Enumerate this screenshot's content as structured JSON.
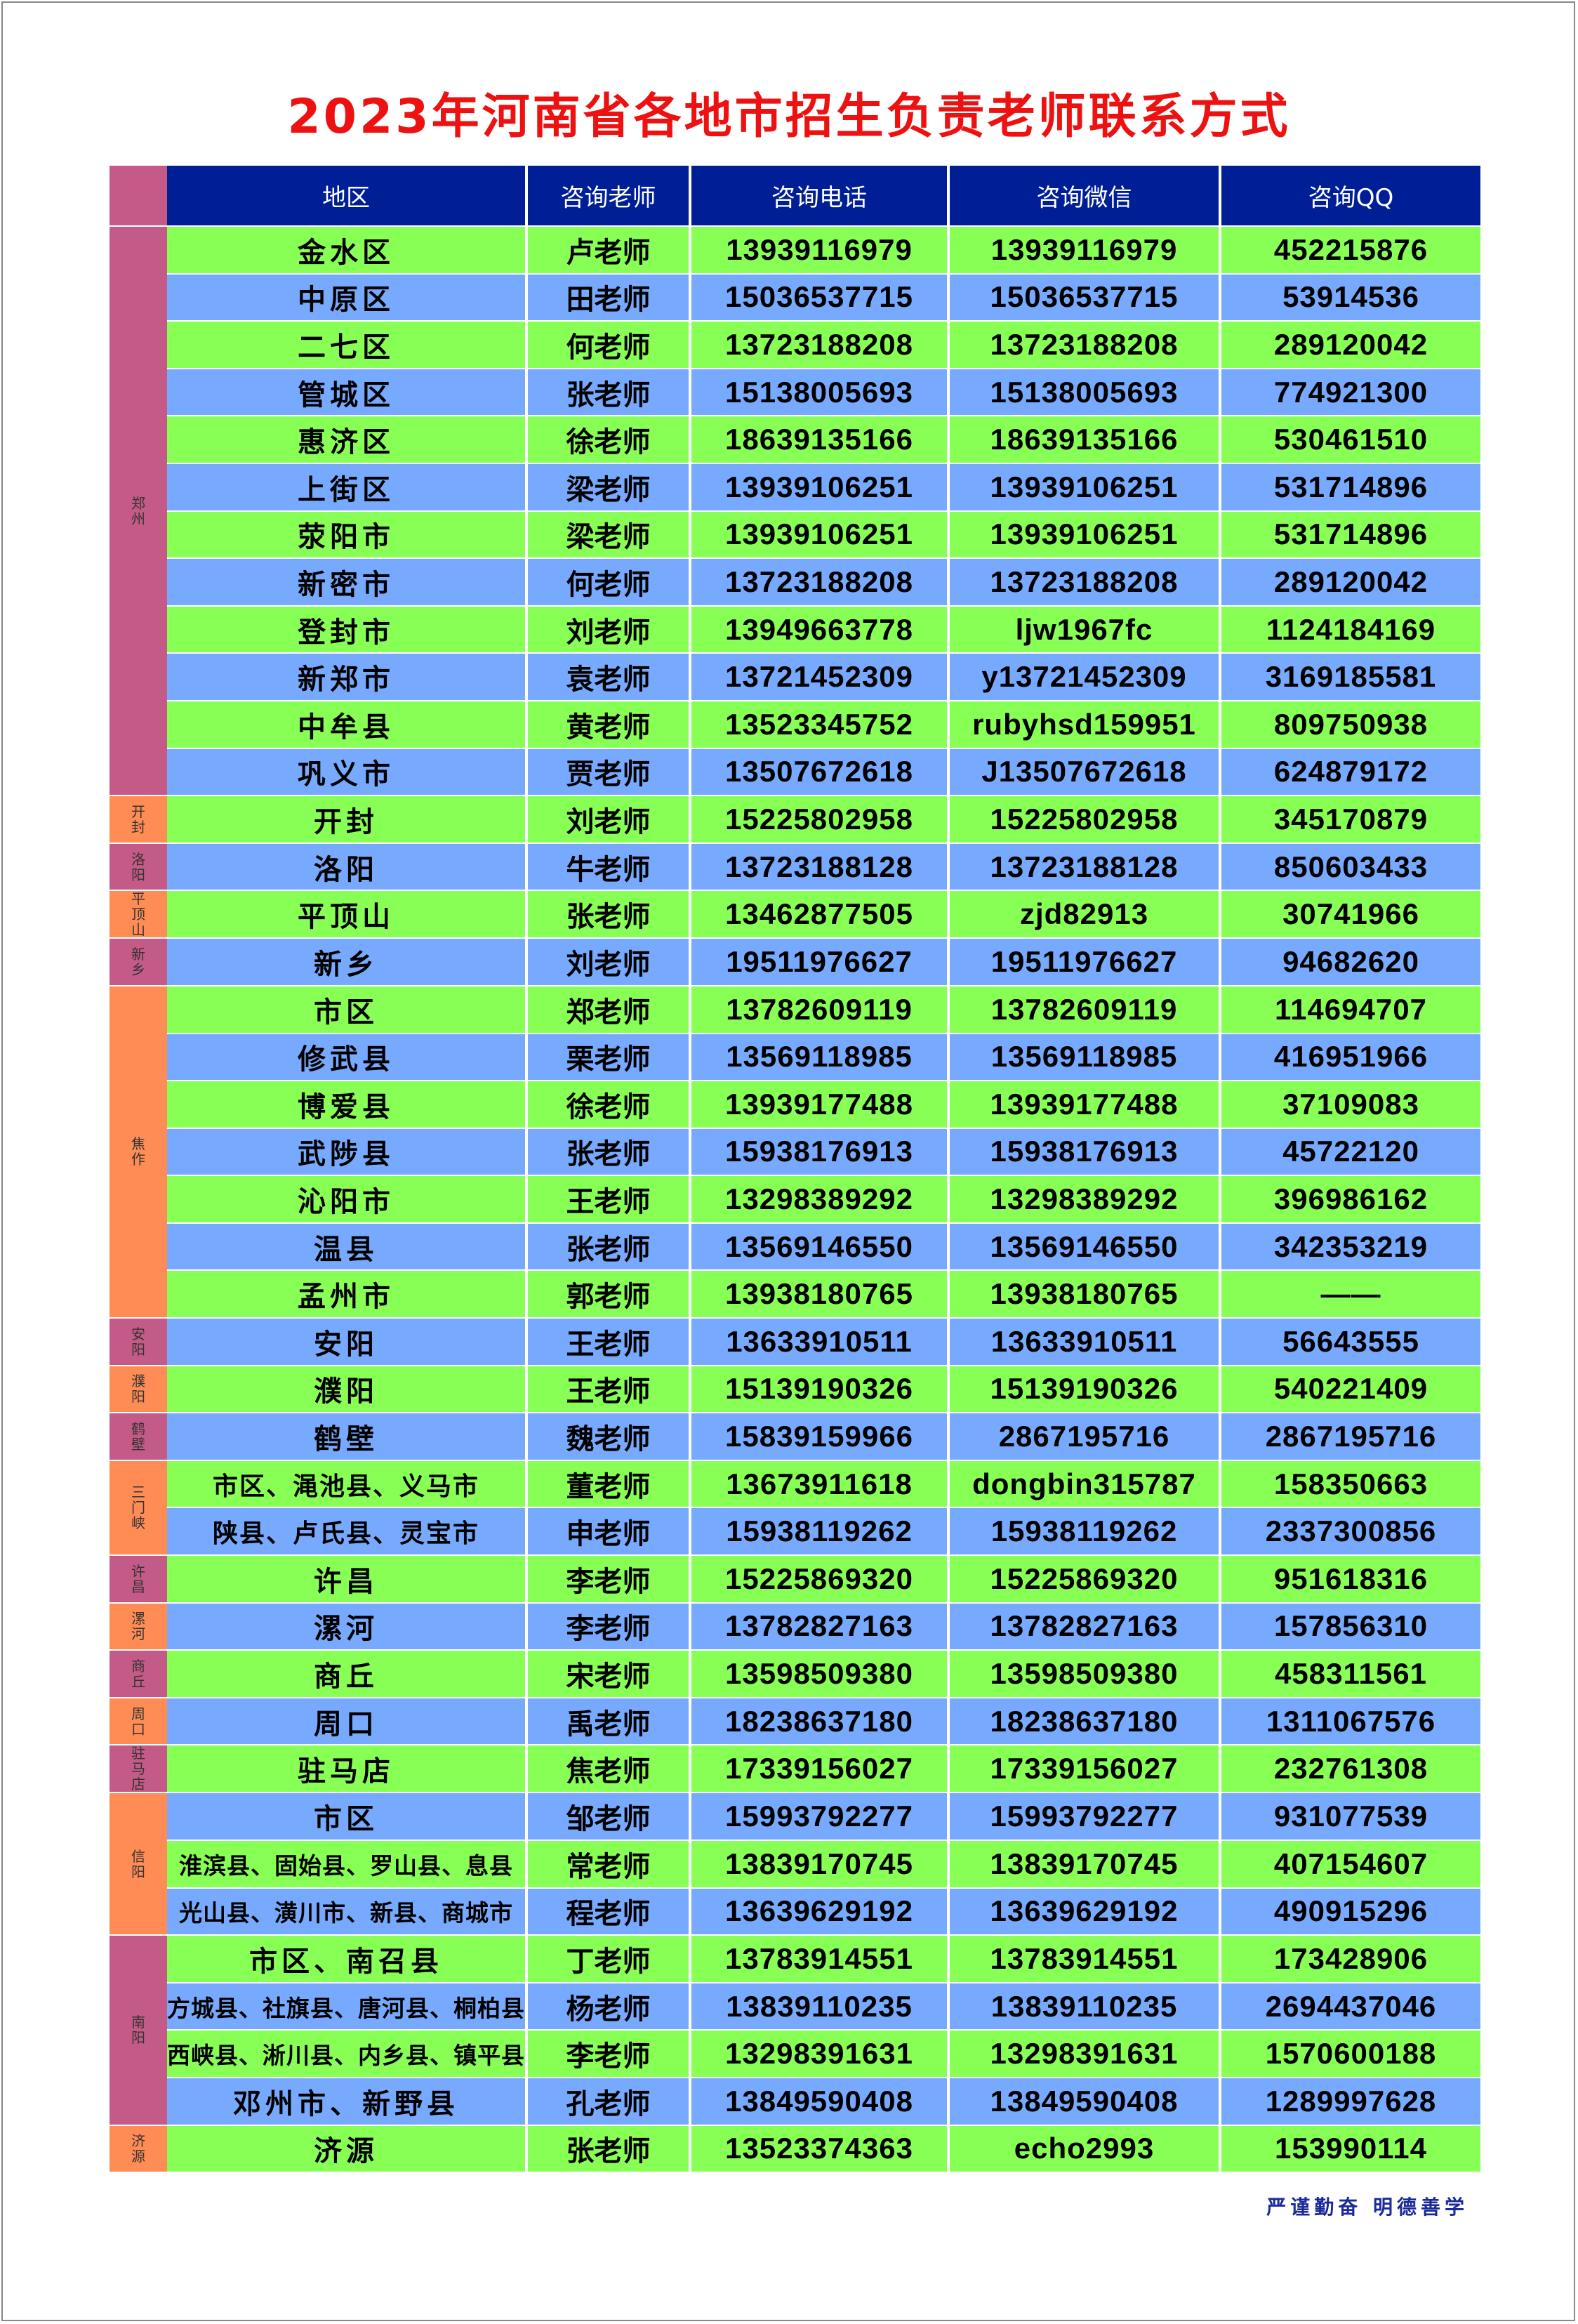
{
  "title": "2023年河南省各地市招生负责老师联系方式",
  "headers": {
    "area": "地区",
    "teacher": "咨询老师",
    "phone": "咨询电话",
    "wechat": "咨询微信",
    "qq": "咨询QQ"
  },
  "footer": "严谨勤奋 明德善学",
  "colors": {
    "title": "#ee1111",
    "header_bg": "#001e96",
    "row_green": "#88ff55",
    "row_blue": "#77aaff",
    "group_pink": "#c45a87",
    "group_orange": "#ff8c55",
    "footer": "#1a2a9a"
  },
  "groups": [
    {
      "name": "郑州",
      "rows": [
        {
          "area": "金水区",
          "teacher": "卢老师",
          "phone": "13939116979",
          "wechat": "13939116979",
          "qq": "452215876"
        },
        {
          "area": "中原区",
          "teacher": "田老师",
          "phone": "15036537715",
          "wechat": "15036537715",
          "qq": "53914536"
        },
        {
          "area": "二七区",
          "teacher": "何老师",
          "phone": "13723188208",
          "wechat": "13723188208",
          "qq": "289120042"
        },
        {
          "area": "管城区",
          "teacher": "张老师",
          "phone": "15138005693",
          "wechat": "15138005693",
          "qq": "774921300"
        },
        {
          "area": "惠济区",
          "teacher": "徐老师",
          "phone": "18639135166",
          "wechat": "18639135166",
          "qq": "530461510"
        },
        {
          "area": "上街区",
          "teacher": "梁老师",
          "phone": "13939106251",
          "wechat": "13939106251",
          "qq": "531714896"
        },
        {
          "area": "荥阳市",
          "teacher": "梁老师",
          "phone": "13939106251",
          "wechat": "13939106251",
          "qq": "531714896"
        },
        {
          "area": "新密市",
          "teacher": "何老师",
          "phone": "13723188208",
          "wechat": "13723188208",
          "qq": "289120042"
        },
        {
          "area": "登封市",
          "teacher": "刘老师",
          "phone": "13949663778",
          "wechat": "ljw1967fc",
          "qq": "1124184169"
        },
        {
          "area": "新郑市",
          "teacher": "袁老师",
          "phone": "13721452309",
          "wechat": "y13721452309",
          "qq": "3169185581"
        },
        {
          "area": "中牟县",
          "teacher": "黄老师",
          "phone": "13523345752",
          "wechat": "rubyhsd159951",
          "qq": "809750938"
        },
        {
          "area": "巩义市",
          "teacher": "贾老师",
          "phone": "13507672618",
          "wechat": "J13507672618",
          "qq": "624879172"
        }
      ]
    },
    {
      "name": "开封",
      "rows": [
        {
          "area": "开封",
          "teacher": "刘老师",
          "phone": "15225802958",
          "wechat": "15225802958",
          "qq": "345170879"
        }
      ]
    },
    {
      "name": "洛阳",
      "rows": [
        {
          "area": "洛阳",
          "teacher": "牛老师",
          "phone": "13723188128",
          "wechat": "13723188128",
          "qq": "850603433"
        }
      ]
    },
    {
      "name": "平顶山",
      "rows": [
        {
          "area": "平顶山",
          "teacher": "张老师",
          "phone": "13462877505",
          "wechat": "zjd82913",
          "qq": "30741966"
        }
      ]
    },
    {
      "name": "新乡",
      "rows": [
        {
          "area": "新乡",
          "teacher": "刘老师",
          "phone": "19511976627",
          "wechat": "19511976627",
          "qq": "94682620"
        }
      ]
    },
    {
      "name": "焦作",
      "rows": [
        {
          "area": "市区",
          "teacher": "郑老师",
          "phone": "13782609119",
          "wechat": "13782609119",
          "qq": "114694707"
        },
        {
          "area": "修武县",
          "teacher": "栗老师",
          "phone": "13569118985",
          "wechat": "13569118985",
          "qq": "416951966"
        },
        {
          "area": "博爱县",
          "teacher": "徐老师",
          "phone": "13939177488",
          "wechat": "13939177488",
          "qq": "37109083"
        },
        {
          "area": "武陟县",
          "teacher": "张老师",
          "phone": "15938176913",
          "wechat": "15938176913",
          "qq": "45722120"
        },
        {
          "area": "沁阳市",
          "teacher": "王老师",
          "phone": "13298389292",
          "wechat": "13298389292",
          "qq": "396986162"
        },
        {
          "area": "温县",
          "teacher": "张老师",
          "phone": "13569146550",
          "wechat": "13569146550",
          "qq": "342353219"
        },
        {
          "area": "孟州市",
          "teacher": "郭老师",
          "phone": "13938180765",
          "wechat": "13938180765",
          "qq": "——"
        }
      ]
    },
    {
      "name": "安阳",
      "rows": [
        {
          "area": "安阳",
          "teacher": "王老师",
          "phone": "13633910511",
          "wechat": "13633910511",
          "qq": "56643555"
        }
      ]
    },
    {
      "name": "濮阳",
      "rows": [
        {
          "area": "濮阳",
          "teacher": "王老师",
          "phone": "15139190326",
          "wechat": "15139190326",
          "qq": "540221409"
        }
      ]
    },
    {
      "name": "鹤壁",
      "rows": [
        {
          "area": "鹤壁",
          "teacher": "魏老师",
          "phone": "15839159966",
          "wechat": "2867195716",
          "qq": "2867195716"
        }
      ]
    },
    {
      "name": "三门峡",
      "rows": [
        {
          "area": "市区、渑池县、义马市",
          "teacher": "董老师",
          "phone": "13673911618",
          "wechat": "dongbin315787",
          "qq": "158350663"
        },
        {
          "area": "陕县、卢氏县、灵宝市",
          "teacher": "申老师",
          "phone": "15938119262",
          "wechat": "15938119262",
          "qq": "2337300856"
        }
      ]
    },
    {
      "name": "许昌",
      "rows": [
        {
          "area": "许昌",
          "teacher": "李老师",
          "phone": "15225869320",
          "wechat": "15225869320",
          "qq": "951618316"
        }
      ]
    },
    {
      "name": "漯河",
      "rows": [
        {
          "area": "漯河",
          "teacher": "李老师",
          "phone": "13782827163",
          "wechat": "13782827163",
          "qq": "157856310"
        }
      ]
    },
    {
      "name": "商丘",
      "rows": [
        {
          "area": "商丘",
          "teacher": "宋老师",
          "phone": "13598509380",
          "wechat": "13598509380",
          "qq": "458311561"
        }
      ]
    },
    {
      "name": "周口",
      "rows": [
        {
          "area": "周口",
          "teacher": "禹老师",
          "phone": "18238637180",
          "wechat": "18238637180",
          "qq": "1311067576"
        }
      ]
    },
    {
      "name": "驻马店",
      "rows": [
        {
          "area": "驻马店",
          "teacher": "焦老师",
          "phone": "17339156027",
          "wechat": "17339156027",
          "qq": "232761308"
        }
      ]
    },
    {
      "name": "信阳",
      "rows": [
        {
          "area": "市区",
          "teacher": "邹老师",
          "phone": "15993792277",
          "wechat": "15993792277",
          "qq": "931077539"
        },
        {
          "area": "淮滨县、固始县、罗山县、息县",
          "teacher": "常老师",
          "phone": "13839170745",
          "wechat": "13839170745",
          "qq": "407154607"
        },
        {
          "area": "光山县、潢川市、新县、商城市",
          "teacher": "程老师",
          "phone": "13639629192",
          "wechat": "13639629192",
          "qq": "490915296"
        }
      ]
    },
    {
      "name": "南阳",
      "rows": [
        {
          "area": "市区、南召县",
          "teacher": "丁老师",
          "phone": "13783914551",
          "wechat": "13783914551",
          "qq": "173428906"
        },
        {
          "area": "方城县、社旗县、唐河县、桐柏县",
          "teacher": "杨老师",
          "phone": "13839110235",
          "wechat": "13839110235",
          "qq": "2694437046"
        },
        {
          "area": "西峡县、淅川县、内乡县、镇平县",
          "teacher": "李老师",
          "phone": "13298391631",
          "wechat": "13298391631",
          "qq": "1570600188"
        },
        {
          "area": "邓州市、新野县",
          "teacher": "孔老师",
          "phone": "13849590408",
          "wechat": "13849590408",
          "qq": "1289997628"
        }
      ]
    },
    {
      "name": "济源",
      "rows": [
        {
          "area": "济源",
          "teacher": "张老师",
          "phone": "13523374363",
          "wechat": "echo2993",
          "qq": "153990114"
        }
      ]
    }
  ]
}
